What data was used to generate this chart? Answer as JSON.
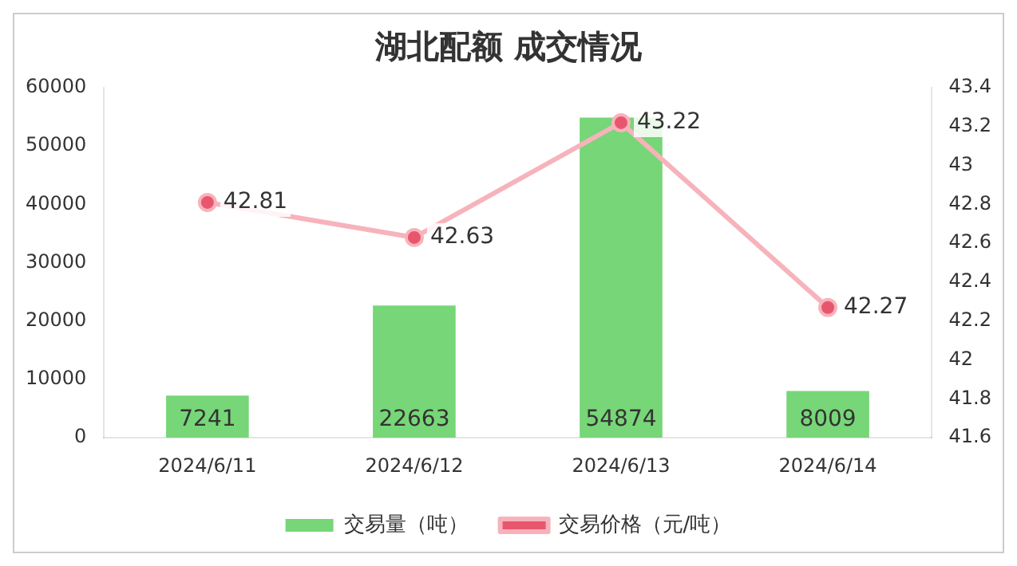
{
  "chart_data": {
    "type": "bar",
    "title": "湖北配额 成交情况",
    "categories": [
      "2024/6/11",
      "2024/6/12",
      "2024/6/13",
      "2024/6/14"
    ],
    "series": [
      {
        "name": "交易量（吨）",
        "color": "#77d677",
        "values": [
          7241,
          22663,
          54874,
          8009
        ]
      },
      {
        "name": "交易价格（元/吨）",
        "type": "line",
        "axis": "y2",
        "color": "#f7b3bb",
        "values": [
          42.81,
          42.63,
          43.22,
          42.27
        ]
      }
    ],
    "ylim": [
      0,
      60000
    ],
    "yticks": [
      0,
      10000,
      20000,
      30000,
      40000,
      50000,
      60000
    ],
    "y2lim": [
      41.6,
      43.4
    ],
    "y2ticks": [
      {
        "value": 41.6,
        "label": "41.6"
      },
      {
        "value": 41.8,
        "label": "41.8"
      },
      {
        "value": 42,
        "label": "42"
      },
      {
        "value": 42.2,
        "label": "42.2"
      },
      {
        "value": 42.4,
        "label": "42.4"
      },
      {
        "value": 42.6,
        "label": "42.6"
      },
      {
        "value": 42.8,
        "label": "42.8"
      },
      {
        "value": 43,
        "label": "43"
      },
      {
        "value": 43.2,
        "label": "43.2"
      },
      {
        "value": 43.4,
        "label": "43.4"
      }
    ],
    "data_labels": true,
    "legend": "bottom",
    "marker": "circle",
    "grid": false
  }
}
